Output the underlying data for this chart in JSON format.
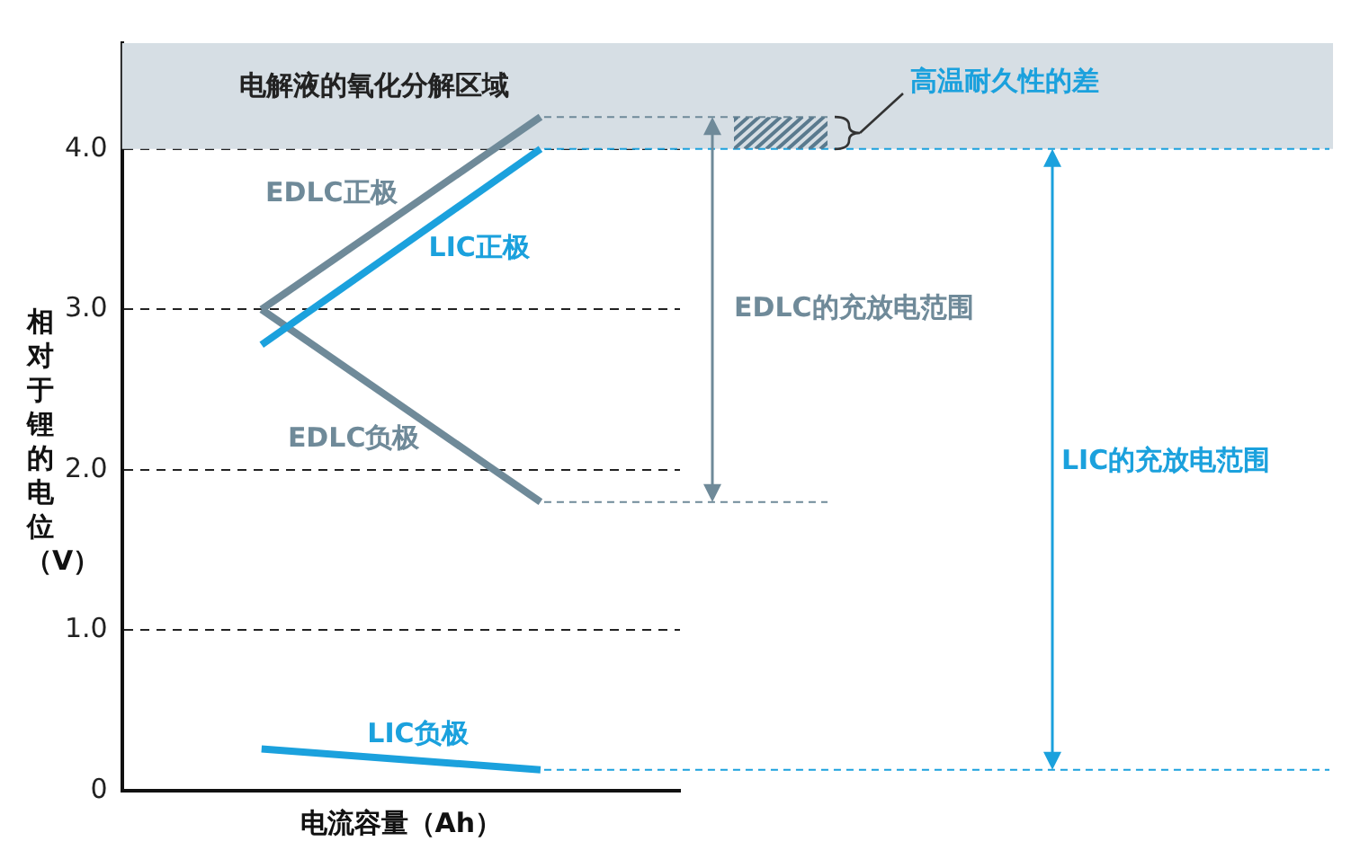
{
  "chart_data": {
    "type": "line",
    "xlabel": "电流容量（Ah）",
    "ylabel": "相对于锂的电位（V）",
    "categories": [
      null,
      null
    ],
    "series": [
      {
        "name": "EDLC正极",
        "color": "#6f8a99",
        "values": [
          3.0,
          4.2
        ]
      },
      {
        "name": "LIC正极",
        "color": "#1ba1dd",
        "values": [
          2.78,
          4.0
        ]
      },
      {
        "name": "EDLC负极",
        "color": "#6f8a99",
        "values": [
          3.0,
          1.8
        ]
      },
      {
        "name": "LIC负极",
        "color": "#1ba1dd",
        "values": [
          0.26,
          0.13
        ]
      }
    ],
    "ylim": [
      0,
      4.66
    ],
    "yticks": [
      0,
      {
        "value": 1,
        "label": "1.0"
      },
      {
        "value": 2,
        "label": "2.0"
      },
      {
        "value": 3,
        "label": "3.0"
      },
      {
        "value": 4,
        "label": "4.0"
      }
    ],
    "grid": "y",
    "marker": "none",
    "tick_labels": "y",
    "ref_lines": [
      {
        "axis": "y",
        "value": 4.2,
        "color": "#6f8a99",
        "line_style": "dashed"
      },
      {
        "axis": "y",
        "value": 1.8,
        "color": "#6f8a99",
        "line_style": "dashed"
      },
      {
        "axis": "y",
        "value": 4.0,
        "color": "#1ba1dd",
        "line_style": "dashed"
      },
      {
        "axis": "y",
        "value": 0.13,
        "color": "#1ba1dd",
        "line_style": "dashed"
      }
    ],
    "bands": [
      {
        "axis": "y",
        "from": 4.0,
        "to": 4.66,
        "label": "电解液的氧化分解区域",
        "color": "#d6dee4"
      }
    ],
    "annotations": [
      "EDLC的充放电范围",
      "LIC的充放电范围",
      "高温耐久性的差"
    ]
  }
}
